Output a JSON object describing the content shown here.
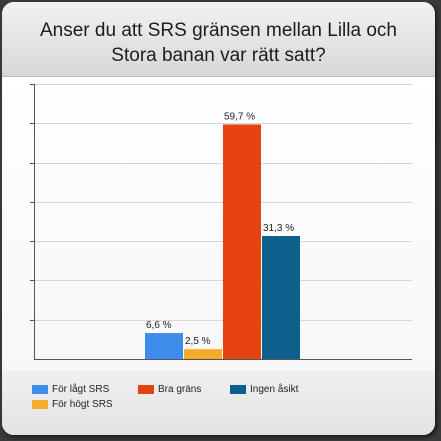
{
  "chart_data": {
    "type": "bar",
    "title_lines": [
      "Anser du att SRS gränsen mellan Lilla och",
      "Stora banan var rätt satt?"
    ],
    "xlabel": "",
    "ylabel": "",
    "ylim": [
      0,
      70
    ],
    "grid": true,
    "legend_position": "bottom",
    "series": [
      {
        "name": "För lågt SRS",
        "value": 6.6,
        "label": "6,6 %",
        "color": "#3d8bea"
      },
      {
        "name": "För högt SRS",
        "value": 2.5,
        "label": "2,5 %",
        "color": "#f5ac2c"
      },
      {
        "name": "Bra gräns",
        "value": 59.7,
        "label": "59,7 %",
        "color": "#e5430f"
      },
      {
        "name": "Ingen åsikt",
        "value": 31.3,
        "label": "31,3 %",
        "color": "#0d5f8c"
      }
    ]
  }
}
